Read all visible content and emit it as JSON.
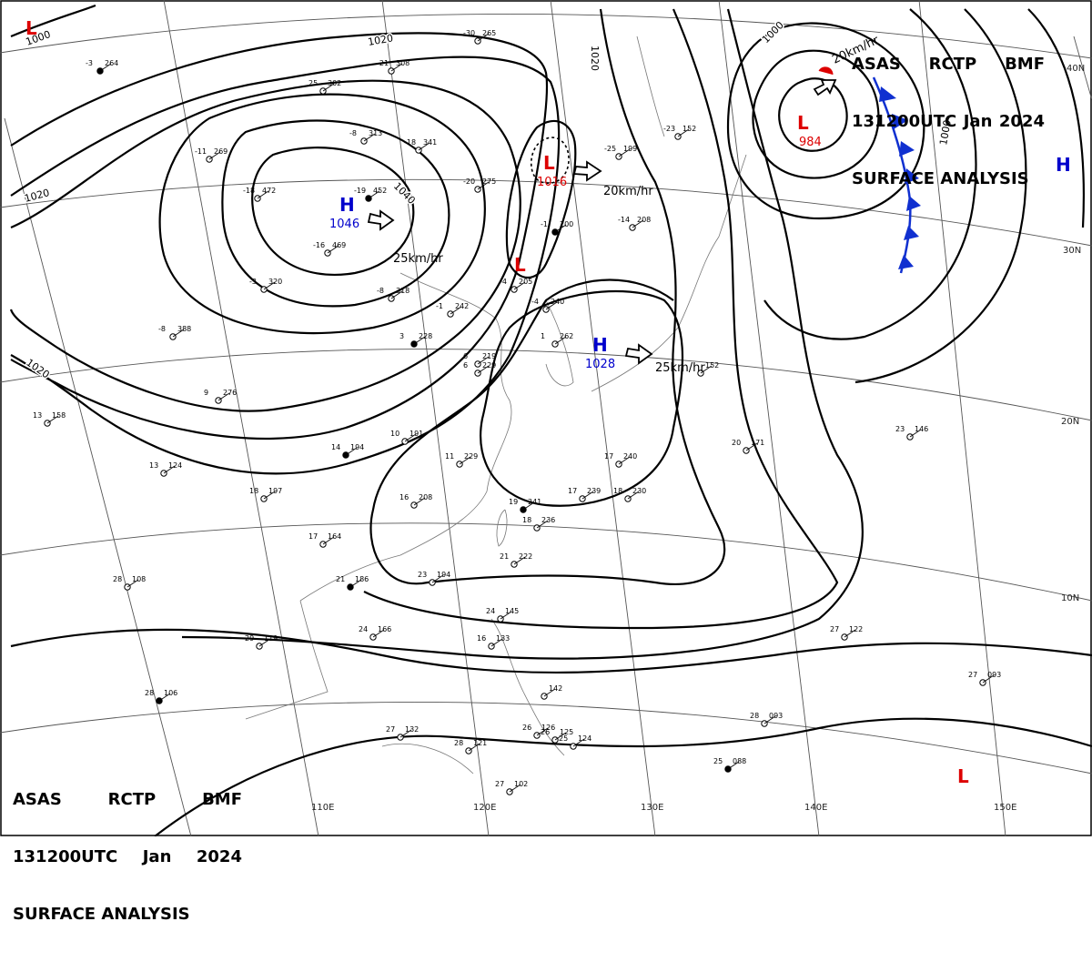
{
  "header": {
    "agency": "ASAS",
    "center": "RCTP",
    "product": "BMF",
    "valid_time": "131200UTC",
    "month": "Jan",
    "year": "2024",
    "title": "SURFACE ANALYSIS"
  },
  "footer": {
    "agency": "ASAS",
    "center": "RCTP",
    "product": "BMF",
    "valid_time": "131200UTC",
    "month": "Jan",
    "year": "2024",
    "title": "SURFACE ANALYSIS"
  },
  "lon_labels": [
    "110E",
    "120E",
    "130E",
    "140E",
    "150E"
  ],
  "lat_labels": [
    "40N",
    "30N",
    "20N",
    "10N"
  ],
  "pressure_systems": [
    {
      "type": "H",
      "value": "1046",
      "motion": "25km/hr",
      "color": "#0000cc"
    },
    {
      "type": "H",
      "value": "1028",
      "motion": "25km/hr",
      "color": "#0000cc"
    },
    {
      "type": "L",
      "value": "1016",
      "motion": "20km/hr",
      "color": "#dd0000"
    },
    {
      "type": "L",
      "value": "984",
      "motion": "20km/hr",
      "color": "#dd0000"
    },
    {
      "type": "L",
      "value": "",
      "motion": "",
      "color": "#dd0000"
    },
    {
      "type": "L",
      "value": "",
      "motion": "",
      "color": "#dd0000"
    },
    {
      "type": "L",
      "value": "",
      "motion": "",
      "color": "#dd0000"
    },
    {
      "type": "H",
      "value": "",
      "motion": "",
      "color": "#0000cc"
    }
  ],
  "isobar_labels": [
    "1000",
    "1020",
    "1040",
    "1020",
    "1020",
    "1020",
    "1000",
    "1000"
  ],
  "station_plots": [
    {
      "t": "-3",
      "p": "264"
    },
    {
      "t": "-30",
      "p": "265"
    },
    {
      "t": "-21",
      "p": "308"
    },
    {
      "t": "25",
      "p": "302"
    },
    {
      "t": "-8",
      "p": "313"
    },
    {
      "t": "-18",
      "p": "341"
    },
    {
      "t": "-11",
      "p": "269"
    },
    {
      "t": "-19",
      "p": "452"
    },
    {
      "t": "-18",
      "p": "472"
    },
    {
      "t": "-16",
      "p": "469"
    },
    {
      "t": "-3",
      "p": "320"
    },
    {
      "t": "-8",
      "p": "318"
    },
    {
      "t": "-8",
      "p": "388"
    },
    {
      "t": "-20",
      "p": "275"
    },
    {
      "t": "-1",
      "p": "200"
    },
    {
      "t": "-14",
      "p": "208"
    },
    {
      "t": "-25",
      "p": "199"
    },
    {
      "t": "-23",
      "p": "152"
    },
    {
      "t": "-4",
      "p": "205"
    },
    {
      "t": "-1",
      "p": "242"
    },
    {
      "t": "-4",
      "p": "240"
    },
    {
      "t": "3",
      "p": "228"
    },
    {
      "t": "1",
      "p": "262"
    },
    {
      "t": "6",
      "p": "219"
    },
    {
      "t": "6",
      "p": "229"
    },
    {
      "t": "9",
      "p": "276"
    },
    {
      "t": "13",
      "p": "158"
    },
    {
      "t": "13",
      "p": "124"
    },
    {
      "t": "14",
      "p": "194"
    },
    {
      "t": "10",
      "p": "191"
    },
    {
      "t": "11",
      "p": "229"
    },
    {
      "t": "16",
      "p": "208"
    },
    {
      "t": "17",
      "p": "240"
    },
    {
      "t": "17",
      "p": "239"
    },
    {
      "t": "18",
      "p": "230"
    },
    {
      "t": "19",
      "p": "241"
    },
    {
      "t": "18",
      "p": "236"
    },
    {
      "t": "21",
      "p": "222"
    },
    {
      "t": "20",
      "p": "171"
    },
    {
      "t": "23",
      "p": "146"
    },
    {
      "t": "18",
      "p": "197"
    },
    {
      "t": "17",
      "p": "164"
    },
    {
      "t": "21",
      "p": "186"
    },
    {
      "t": "23",
      "p": "194"
    },
    {
      "t": "28",
      "p": "108"
    },
    {
      "t": "29",
      "p": "119"
    },
    {
      "t": "24",
      "p": "166"
    },
    {
      "t": "24",
      "p": "145"
    },
    {
      "t": "16",
      "p": "133"
    },
    {
      "t": "28",
      "p": "106"
    },
    {
      "t": "27",
      "p": "132"
    },
    {
      "t": "28",
      "p": "121"
    },
    {
      "t": "26",
      "p": "126"
    },
    {
      "t": "26",
      "p": "125"
    },
    {
      "t": "25",
      "p": "124"
    },
    {
      "t": "27",
      "p": "102"
    },
    {
      "t": "25",
      "p": "088"
    },
    {
      "t": "28",
      "p": "093"
    },
    {
      "t": "27",
      "p": "122"
    },
    {
      "t": "27",
      "p": "093"
    },
    {
      "t": "",
      "p": "142"
    },
    {
      "t": "",
      "p": "152"
    }
  ]
}
